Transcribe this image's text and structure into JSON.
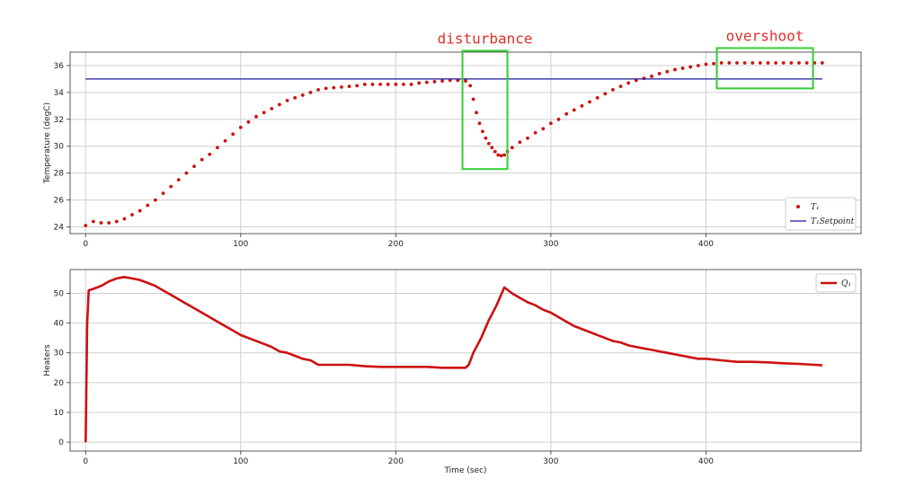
{
  "chart_data": [
    {
      "type": "scatter",
      "title": "",
      "xlabel": "",
      "ylabel": "Temperature (degC)",
      "xlim": [
        -10,
        500
      ],
      "ylim": [
        23.5,
        37
      ],
      "xticks": [
        0,
        100,
        200,
        300,
        400
      ],
      "yticks": [
        24,
        26,
        28,
        30,
        32,
        34,
        36
      ],
      "grid": true,
      "legend_position": "bottom-right",
      "series": [
        {
          "name": "T_1",
          "legend_label": "T₁",
          "kind": "markers",
          "color": "#cc1111",
          "x": [
            0,
            5,
            10,
            15,
            20,
            25,
            30,
            35,
            40,
            45,
            50,
            55,
            60,
            65,
            70,
            75,
            80,
            85,
            90,
            95,
            100,
            105,
            110,
            115,
            120,
            125,
            130,
            135,
            140,
            145,
            150,
            155,
            160,
            165,
            170,
            175,
            180,
            185,
            190,
            195,
            200,
            205,
            210,
            215,
            220,
            225,
            230,
            235,
            240,
            245,
            248,
            250,
            252,
            254,
            256,
            258,
            260,
            262,
            264,
            266,
            268,
            270,
            272,
            275,
            280,
            285,
            290,
            295,
            300,
            305,
            310,
            315,
            320,
            325,
            330,
            335,
            340,
            345,
            350,
            355,
            360,
            365,
            370,
            375,
            380,
            385,
            390,
            395,
            400,
            405,
            410,
            415,
            420,
            425,
            430,
            435,
            440,
            445,
            450,
            455,
            460,
            465,
            470,
            475
          ],
          "y": [
            24.1,
            24.4,
            24.3,
            24.3,
            24.4,
            24.6,
            24.9,
            25.2,
            25.6,
            26.0,
            26.5,
            27.0,
            27.5,
            28.0,
            28.5,
            29.0,
            29.4,
            29.9,
            30.4,
            30.9,
            31.4,
            31.8,
            32.2,
            32.5,
            32.8,
            33.1,
            33.4,
            33.6,
            33.8,
            34.0,
            34.2,
            34.3,
            34.35,
            34.4,
            34.45,
            34.5,
            34.6,
            34.6,
            34.6,
            34.6,
            34.6,
            34.6,
            34.6,
            34.7,
            34.75,
            34.8,
            34.85,
            34.9,
            34.9,
            34.85,
            34.5,
            33.5,
            32.5,
            31.7,
            31.1,
            30.6,
            30.2,
            29.9,
            29.6,
            29.35,
            29.3,
            29.35,
            29.6,
            29.9,
            30.3,
            30.6,
            31.0,
            31.3,
            31.7,
            32.0,
            32.4,
            32.7,
            33.0,
            33.3,
            33.6,
            33.9,
            34.2,
            34.45,
            34.7,
            34.9,
            35.05,
            35.2,
            35.4,
            35.55,
            35.7,
            35.8,
            35.9,
            36.0,
            36.1,
            36.15,
            36.2,
            36.2,
            36.2,
            36.2,
            36.2,
            36.2,
            36.2,
            36.2,
            36.2,
            36.2,
            36.2,
            36.2,
            36.2,
            36.2
          ]
        },
        {
          "name": "T_1 Setpoint",
          "legend_label": "T₁Setpoint",
          "kind": "line",
          "color": "#1a1a9c",
          "x": [
            0,
            475
          ],
          "y": [
            35,
            35
          ]
        }
      ],
      "annotations": [
        {
          "text": "disturbance",
          "color": "#e0302a",
          "box_color": "#33cc33",
          "box_x": [
            243,
            272
          ],
          "box_y": [
            28.3,
            37.1
          ]
        },
        {
          "text": "overshoot",
          "color": "#e0302a",
          "box_color": "#33cc33",
          "box_x": [
            407,
            469
          ],
          "box_y": [
            34.3,
            37.3
          ]
        }
      ]
    },
    {
      "type": "line",
      "title": "",
      "xlabel": "Time (sec)",
      "ylabel": "Heaters",
      "xlim": [
        -10,
        500
      ],
      "ylim": [
        -3,
        58
      ],
      "xticks": [
        0,
        100,
        200,
        300,
        400
      ],
      "yticks": [
        0,
        10,
        20,
        30,
        40,
        50
      ],
      "grid": true,
      "legend_position": "top-right",
      "series": [
        {
          "name": "Q_1",
          "legend_label": "Q₁",
          "kind": "line",
          "color": "#cc1111",
          "x": [
            0,
            1,
            2,
            5,
            10,
            15,
            20,
            25,
            30,
            35,
            40,
            45,
            50,
            55,
            60,
            65,
            70,
            75,
            80,
            85,
            90,
            95,
            100,
            105,
            110,
            115,
            120,
            125,
            130,
            135,
            140,
            145,
            150,
            155,
            160,
            170,
            180,
            190,
            200,
            210,
            220,
            230,
            240,
            245,
            247,
            250,
            255,
            260,
            265,
            270,
            275,
            280,
            285,
            290,
            295,
            300,
            305,
            310,
            315,
            320,
            325,
            330,
            335,
            340,
            345,
            350,
            355,
            360,
            365,
            370,
            375,
            380,
            385,
            390,
            395,
            400,
            410,
            420,
            430,
            440,
            450,
            460,
            470,
            475
          ],
          "y": [
            0,
            40,
            51,
            51.5,
            52.5,
            54,
            55,
            55.5,
            55,
            54.5,
            53.5,
            52.5,
            51,
            49.5,
            48,
            46.5,
            45,
            43.5,
            42,
            40.5,
            39,
            37.5,
            36,
            35,
            34,
            33,
            32,
            30.5,
            30,
            29,
            28,
            27.5,
            26,
            26,
            26,
            26,
            25.5,
            25.3,
            25.3,
            25.3,
            25.3,
            25,
            25,
            25,
            26,
            30,
            35,
            41,
            46,
            52,
            50,
            48.5,
            47,
            46,
            44.5,
            43.5,
            42,
            40.5,
            39,
            38,
            37,
            36,
            35,
            34,
            33.5,
            32.5,
            32,
            31.5,
            31,
            30.5,
            30,
            29.5,
            29,
            28.5,
            28,
            28,
            27.5,
            27,
            27,
            26.8,
            26.5,
            26.3,
            26.0,
            25.8
          ]
        }
      ]
    }
  ]
}
